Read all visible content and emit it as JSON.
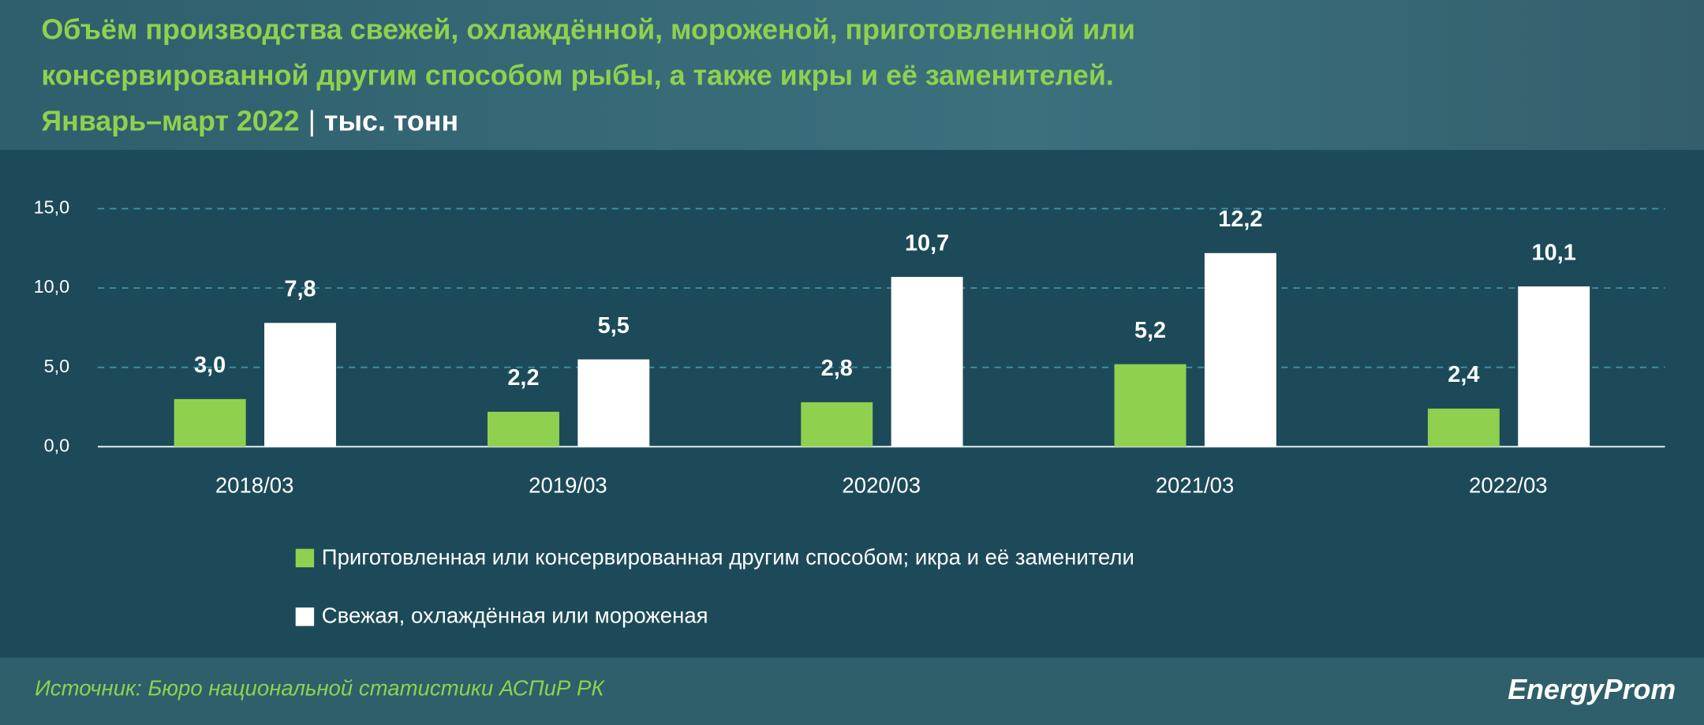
{
  "chart_data": {
    "type": "bar",
    "title": [
      "Объём производства свежей, охлаждённой, мороженой, приготовленной или",
      "консервированной другим способом рыбы, а также икры и её заменителей."
    ],
    "subtitle": "Январь–март 2022",
    "unit": "тыс. тонн",
    "categories": [
      "2018/03",
      "2019/03",
      "2020/03",
      "2021/03",
      "2022/03"
    ],
    "series": [
      {
        "name": "Приготовленная или консервированная другим способом; икра и её заменители",
        "color": "#8fd14f",
        "values": [
          3.0,
          2.2,
          2.8,
          5.2,
          2.4
        ],
        "value_labels": [
          "3,0",
          "2,2",
          "2,8",
          "5,2",
          "2,4"
        ]
      },
      {
        "name": "Свежая, охлаждённая или мороженая",
        "color": "#ffffff",
        "values": [
          7.8,
          5.5,
          10.7,
          12.2,
          10.1
        ],
        "value_labels": [
          "7,8",
          "5,5",
          "10,7",
          "12,2",
          "10,1"
        ]
      }
    ],
    "ylim": [
      0,
      15
    ],
    "yticks": [
      {
        "value": 0,
        "label": "0,0"
      },
      {
        "value": 5,
        "label": "5,0"
      },
      {
        "value": 10,
        "label": "10,0"
      },
      {
        "value": 15,
        "label": "15,0"
      }
    ],
    "grid": true,
    "source": "Источник: Бюро национальной статистики АСПиР РК",
    "logo": "EnergyProm"
  }
}
